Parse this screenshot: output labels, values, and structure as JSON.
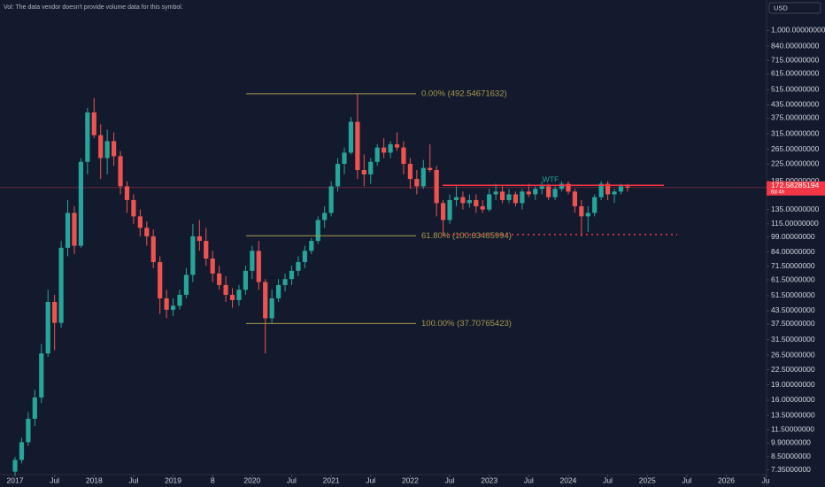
{
  "chart_data": {
    "type": "candlestick",
    "note_text": "Vol: The data vendor doesn't provide volume data for this symbol.",
    "currency": "USD",
    "log_scale": true,
    "up_color": "#26a69a",
    "down_color": "#ef5350",
    "ylim": [
      7.1,
      1200
    ],
    "yticks": [
      {
        "value": 1000,
        "label": "1,000.00000000"
      },
      {
        "value": 840,
        "label": "840.00000000"
      },
      {
        "value": 715,
        "label": "715.00000000"
      },
      {
        "value": 615,
        "label": "615.00000000"
      },
      {
        "value": 515,
        "label": "515.00000000"
      },
      {
        "value": 435,
        "label": "435.00000000"
      },
      {
        "value": 375,
        "label": "375.00000000"
      },
      {
        "value": 315,
        "label": "315.00000000"
      },
      {
        "value": 265,
        "label": "265.00000000"
      },
      {
        "value": 225,
        "label": "225.00000000"
      },
      {
        "value": 185,
        "label": "185.00000000"
      },
      {
        "value": 135,
        "label": "135.00000000"
      },
      {
        "value": 115,
        "label": "115.00000000"
      },
      {
        "value": 99,
        "label": "99.00000000"
      },
      {
        "value": 84,
        "label": "84.00000000"
      },
      {
        "value": 71.5,
        "label": "71.50000000"
      },
      {
        "value": 61.5,
        "label": "61.50000000"
      },
      {
        "value": 51.5,
        "label": "51.50000000"
      },
      {
        "value": 43.5,
        "label": "43.50000000"
      },
      {
        "value": 37.5,
        "label": "37.50000000"
      },
      {
        "value": 31.5,
        "label": "31.50000000"
      },
      {
        "value": 26.5,
        "label": "26.50000000"
      },
      {
        "value": 22.5,
        "label": "22.50000000"
      },
      {
        "value": 19,
        "label": "19.00000000"
      },
      {
        "value": 16,
        "label": "16.00000000"
      },
      {
        "value": 13.5,
        "label": "13.50000000"
      },
      {
        "value": 11.5,
        "label": "11.50000000"
      },
      {
        "value": 9.9,
        "label": "9.90000000"
      },
      {
        "value": 8.5,
        "label": "8.50000000"
      },
      {
        "value": 7.35,
        "label": "7.35000000"
      }
    ],
    "xticks": [
      {
        "value": "2017-01",
        "label": "2017"
      },
      {
        "value": "2017-07",
        "label": "Jul"
      },
      {
        "value": "2018-01",
        "label": "2018"
      },
      {
        "value": "2018-07",
        "label": "Jul"
      },
      {
        "value": "2019-01",
        "label": "2019"
      },
      {
        "value": "2019-07",
        "label": "8"
      },
      {
        "value": "2020-01",
        "label": "2020"
      },
      {
        "value": "2020-07",
        "label": "Jul"
      },
      {
        "value": "2021-01",
        "label": "2021"
      },
      {
        "value": "2021-07",
        "label": "Jul"
      },
      {
        "value": "2022-01",
        "label": "2022"
      },
      {
        "value": "2022-07",
        "label": "Jul"
      },
      {
        "value": "2023-01",
        "label": "2023"
      },
      {
        "value": "2023-07",
        "label": "Jul"
      },
      {
        "value": "2024-01",
        "label": "2024"
      },
      {
        "value": "2024-07",
        "label": "Jul"
      },
      {
        "value": "2025-01",
        "label": "2025"
      },
      {
        "value": "2025-07",
        "label": "Jul"
      },
      {
        "value": "2026-01",
        "label": "2026"
      },
      {
        "value": "2026-07",
        "label": "Ju"
      }
    ],
    "dates": [
      "2017-01",
      "2017-02",
      "2017-03",
      "2017-04",
      "2017-05",
      "2017-06",
      "2017-07",
      "2017-08",
      "2017-09",
      "2017-10",
      "2017-11",
      "2017-12",
      "2018-01",
      "2018-02",
      "2018-03",
      "2018-04",
      "2018-05",
      "2018-06",
      "2018-07",
      "2018-08",
      "2018-09",
      "2018-10",
      "2018-11",
      "2018-12",
      "2019-01",
      "2019-02",
      "2019-03",
      "2019-04",
      "2019-05",
      "2019-06",
      "2019-07",
      "2019-08",
      "2019-09",
      "2019-10",
      "2019-11",
      "2019-12",
      "2020-01",
      "2020-02",
      "2020-03",
      "2020-04",
      "2020-05",
      "2020-06",
      "2020-07",
      "2020-08",
      "2020-09",
      "2020-10",
      "2020-11",
      "2020-12",
      "2021-01",
      "2021-02",
      "2021-03",
      "2021-04",
      "2021-05",
      "2021-06",
      "2021-07",
      "2021-08",
      "2021-09",
      "2021-10",
      "2021-11",
      "2021-12",
      "2022-01",
      "2022-02",
      "2022-03",
      "2022-04",
      "2022-05",
      "2022-06",
      "2022-07",
      "2022-08",
      "2022-09",
      "2022-10",
      "2022-11",
      "2022-12",
      "2023-01",
      "2023-02",
      "2023-03",
      "2023-04",
      "2023-05",
      "2023-06",
      "2023-07",
      "2023-08",
      "2023-09",
      "2023-10",
      "2023-11",
      "2023-12",
      "2024-01",
      "2024-02",
      "2024-03",
      "2024-04",
      "2024-05",
      "2024-06",
      "2024-07",
      "2024-08",
      "2024-09",
      "2024-10"
    ],
    "candles": [
      [
        7.2,
        8.5,
        6.9,
        8.2
      ],
      [
        8.2,
        10.5,
        7.9,
        10
      ],
      [
        10,
        14,
        9.6,
        13
      ],
      [
        13,
        18,
        12,
        16.5
      ],
      [
        16.5,
        30,
        15.5,
        27
      ],
      [
        27,
        55,
        26,
        48
      ],
      [
        48,
        52,
        28,
        38
      ],
      [
        38,
        95,
        36,
        88
      ],
      [
        88,
        150,
        80,
        130
      ],
      [
        130,
        140,
        82,
        90
      ],
      [
        90,
        240,
        88,
        230
      ],
      [
        230,
        420,
        200,
        400
      ],
      [
        400,
        470,
        300,
        310
      ],
      [
        310,
        350,
        190,
        240
      ],
      [
        240,
        330,
        200,
        290
      ],
      [
        290,
        320,
        220,
        245
      ],
      [
        245,
        260,
        160,
        175
      ],
      [
        175,
        185,
        130,
        150
      ],
      [
        150,
        160,
        115,
        125
      ],
      [
        125,
        135,
        100,
        110
      ],
      [
        110,
        118,
        90,
        100
      ],
      [
        100,
        108,
        70,
        75
      ],
      [
        75,
        80,
        42,
        50
      ],
      [
        50,
        55,
        40,
        44
      ],
      [
        44,
        50,
        41,
        46
      ],
      [
        46,
        55,
        44,
        52
      ],
      [
        52,
        70,
        50,
        65
      ],
      [
        65,
        115,
        60,
        100
      ],
      [
        100,
        120,
        85,
        95
      ],
      [
        95,
        110,
        72,
        78
      ],
      [
        78,
        85,
        60,
        66
      ],
      [
        66,
        72,
        55,
        58
      ],
      [
        58,
        64,
        48,
        52
      ],
      [
        52,
        56,
        45,
        49
      ],
      [
        49,
        58,
        46,
        55
      ],
      [
        55,
        72,
        52,
        68
      ],
      [
        68,
        90,
        62,
        85
      ],
      [
        85,
        95,
        55,
        60
      ],
      [
        60,
        62,
        27,
        40
      ],
      [
        40,
        55,
        38,
        50
      ],
      [
        50,
        62,
        48,
        58
      ],
      [
        58,
        66,
        54,
        62
      ],
      [
        62,
        72,
        58,
        68
      ],
      [
        68,
        80,
        64,
        75
      ],
      [
        75,
        90,
        70,
        85
      ],
      [
        85,
        98,
        82,
        95
      ],
      [
        95,
        125,
        92,
        120
      ],
      [
        120,
        140,
        110,
        130
      ],
      [
        130,
        185,
        125,
        175
      ],
      [
        175,
        240,
        165,
        225
      ],
      [
        225,
        270,
        200,
        255
      ],
      [
        255,
        380,
        250,
        360
      ],
      [
        360,
        492.5,
        190,
        210
      ],
      [
        210,
        250,
        175,
        200
      ],
      [
        200,
        240,
        180,
        230
      ],
      [
        230,
        280,
        220,
        270
      ],
      [
        270,
        300,
        240,
        255
      ],
      [
        255,
        290,
        240,
        280
      ],
      [
        280,
        320,
        260,
        270
      ],
      [
        270,
        290,
        200,
        225
      ],
      [
        225,
        240,
        170,
        190
      ],
      [
        190,
        210,
        160,
        175
      ],
      [
        175,
        235,
        170,
        215
      ],
      [
        215,
        280,
        205,
        210
      ],
      [
        210,
        220,
        125,
        145
      ],
      [
        145,
        150,
        100,
        120
      ],
      [
        120,
        160,
        115,
        150
      ],
      [
        150,
        175,
        140,
        155
      ],
      [
        155,
        165,
        135,
        145
      ],
      [
        145,
        160,
        138,
        150
      ],
      [
        150,
        160,
        130,
        140
      ],
      [
        140,
        150,
        130,
        135
      ],
      [
        135,
        170,
        132,
        160
      ],
      [
        160,
        180,
        150,
        165
      ],
      [
        165,
        175,
        145,
        150
      ],
      [
        150,
        170,
        145,
        160
      ],
      [
        160,
        165,
        140,
        145
      ],
      [
        145,
        170,
        135,
        165
      ],
      [
        165,
        180,
        155,
        160
      ],
      [
        160,
        175,
        150,
        170
      ],
      [
        170,
        185,
        160,
        175
      ],
      [
        175,
        180,
        150,
        155
      ],
      [
        155,
        175,
        150,
        170
      ],
      [
        170,
        185,
        165,
        180
      ],
      [
        180,
        185,
        160,
        165
      ],
      [
        165,
        170,
        130,
        140
      ],
      [
        140,
        150,
        100,
        125
      ],
      [
        125,
        140,
        105,
        130
      ],
      [
        130,
        160,
        125,
        155
      ],
      [
        155,
        185,
        150,
        180
      ],
      [
        180,
        185,
        150,
        160
      ],
      [
        160,
        170,
        145,
        165
      ],
      [
        165,
        180,
        160,
        175
      ],
      [
        175,
        180,
        165,
        172.58
      ]
    ],
    "fib_levels": [
      {
        "label": "0.00% (492.54671632)",
        "value": 492.54671632
      },
      {
        "label": "61.80% (100.63485994)",
        "value": 100.63485994
      },
      {
        "label": "100.00% (37.70765423)",
        "value": 37.70765423
      }
    ],
    "fib_color": "#a89a4c",
    "resistance": {
      "label": "WTF",
      "value": 177,
      "color": "#f23645"
    },
    "support": {
      "value": 102,
      "color": "#f23645"
    },
    "last_price": {
      "value": 172.58285194,
      "label": "172.58285194",
      "countdown": "6d 4h"
    }
  }
}
